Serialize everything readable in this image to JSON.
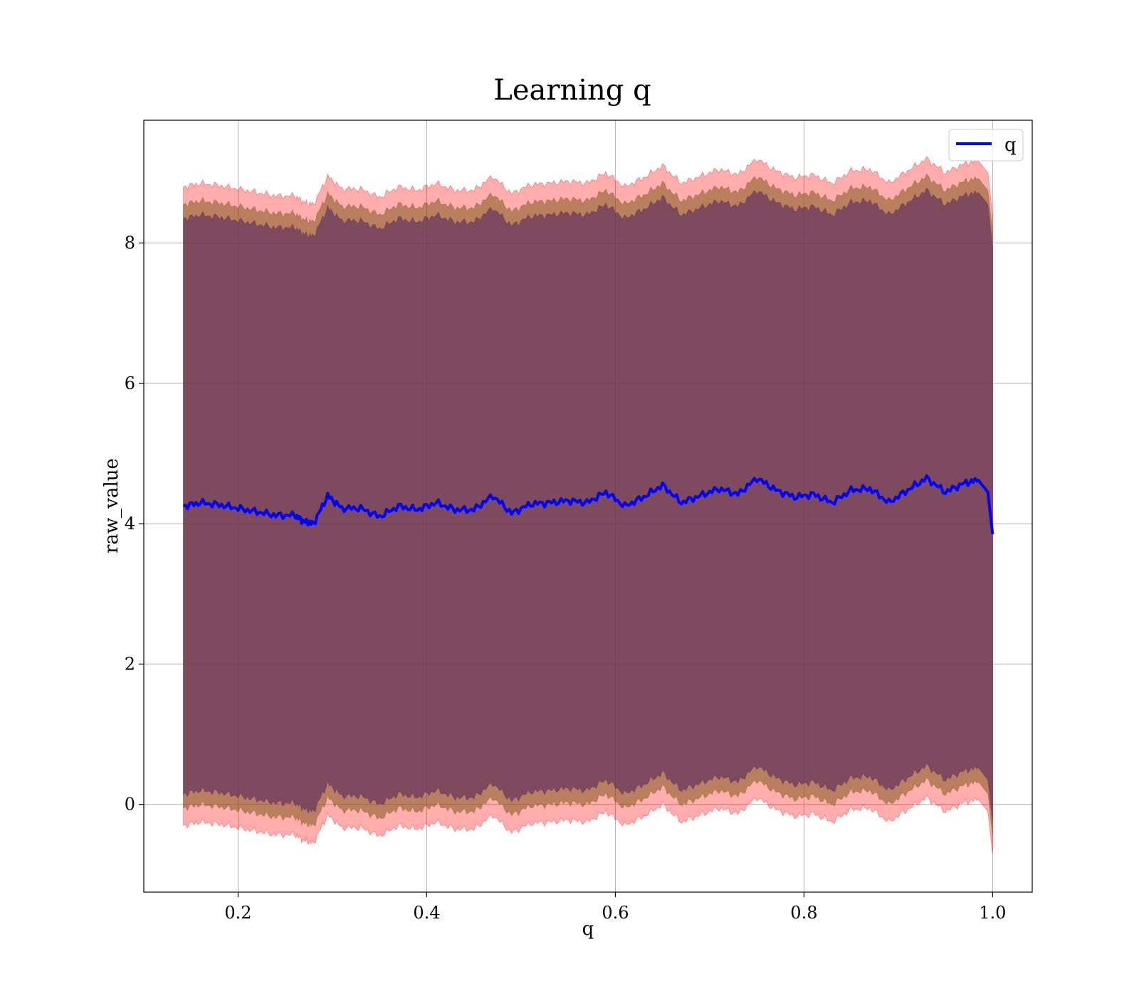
{
  "chart_data": {
    "type": "area",
    "title": "Learning q",
    "xlabel": "q",
    "ylabel": "raw_value",
    "xlim": [
      0.1,
      1.042
    ],
    "ylim": [
      -1.25,
      9.75
    ],
    "xticks": [
      0.2,
      0.4,
      0.6,
      0.8,
      1.0
    ],
    "xtick_labels": [
      "0.2",
      "0.4",
      "0.6",
      "0.8",
      "1.0"
    ],
    "yticks": [
      0,
      2,
      4,
      6,
      8
    ],
    "ytick_labels": [
      "0",
      "2",
      "4",
      "6",
      "8"
    ],
    "grid": true,
    "legend": {
      "position": "top-right",
      "entries": [
        "q"
      ]
    },
    "colors": {
      "mean_line": "#0000ff",
      "outer_band": "#ff0000",
      "middle_band": "#7f5a1e",
      "inner_band": "#5a2a5e",
      "grid": "#b0b0b0"
    },
    "band_half_widths": {
      "outer": 4.55,
      "middle": 4.3,
      "inner": 4.1
    },
    "x": [
      0.142,
      0.16,
      0.18,
      0.2,
      0.22,
      0.24,
      0.26,
      0.27,
      0.28,
      0.295,
      0.31,
      0.33,
      0.35,
      0.37,
      0.39,
      0.41,
      0.43,
      0.45,
      0.47,
      0.49,
      0.51,
      0.53,
      0.55,
      0.57,
      0.59,
      0.61,
      0.63,
      0.65,
      0.67,
      0.69,
      0.71,
      0.73,
      0.75,
      0.77,
      0.79,
      0.81,
      0.83,
      0.85,
      0.87,
      0.89,
      0.91,
      0.93,
      0.95,
      0.97,
      0.985,
      0.995,
      1.0
    ],
    "series": [
      {
        "name": "q",
        "values": [
          4.25,
          4.3,
          4.27,
          4.22,
          4.17,
          4.12,
          4.12,
          4.03,
          4.0,
          4.4,
          4.22,
          4.22,
          4.1,
          4.25,
          4.2,
          4.3,
          4.2,
          4.2,
          4.4,
          4.15,
          4.28,
          4.3,
          4.33,
          4.3,
          4.45,
          4.25,
          4.38,
          4.55,
          4.3,
          4.4,
          4.5,
          4.42,
          4.65,
          4.48,
          4.38,
          4.42,
          4.3,
          4.48,
          4.5,
          4.3,
          4.48,
          4.65,
          4.45,
          4.58,
          4.62,
          4.45,
          3.85
        ]
      }
    ]
  }
}
